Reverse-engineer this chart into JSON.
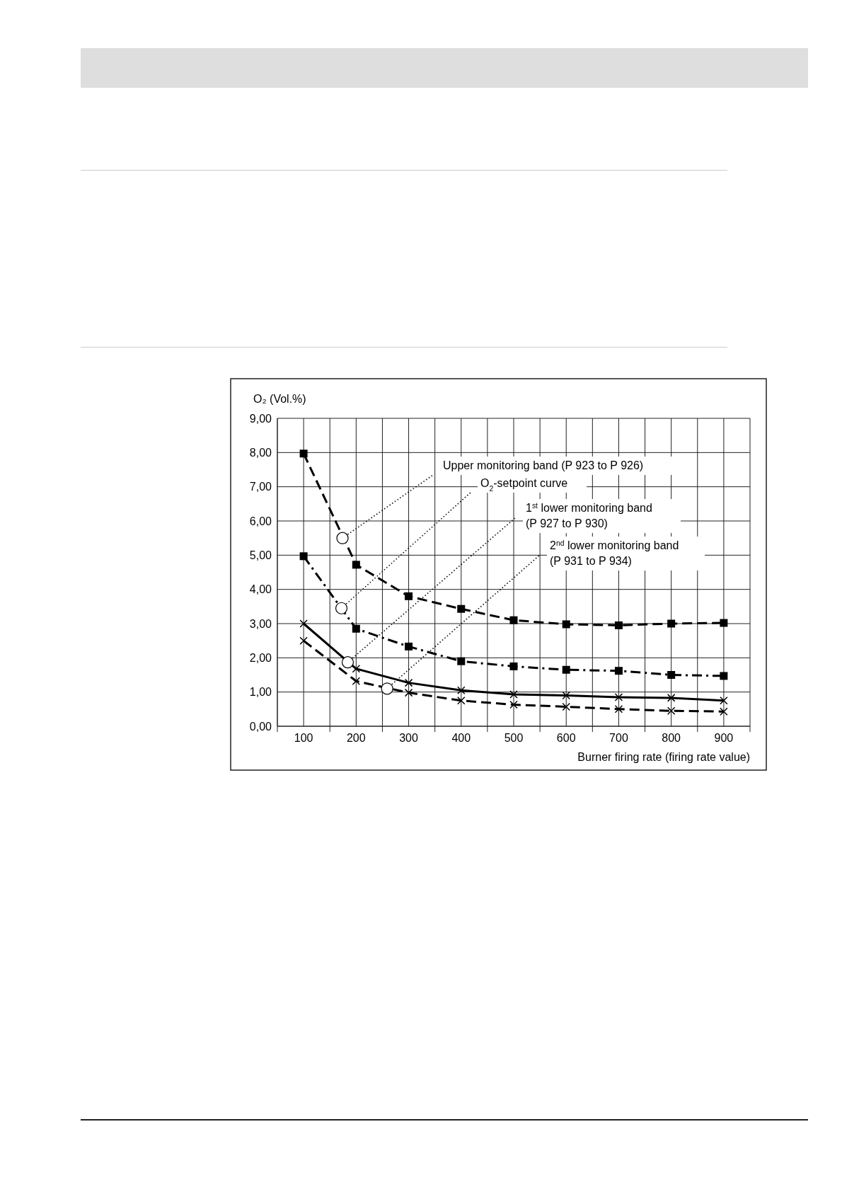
{
  "chart_data": {
    "type": "line",
    "ylabel": "O₂ (Vol.%)",
    "xlabel": "Burner firing rate (firing rate value)",
    "x": [
      100,
      200,
      300,
      400,
      500,
      600,
      700,
      800,
      900
    ],
    "xlim": [
      50,
      950
    ],
    "xticks": [
      {
        "value": 50,
        "label": null
      },
      100,
      {
        "value": 150,
        "label": null
      },
      200,
      {
        "value": 250,
        "label": null
      },
      300,
      {
        "value": 350,
        "label": null
      },
      400,
      {
        "value": 450,
        "label": null
      },
      500,
      {
        "value": 550,
        "label": null
      },
      600,
      {
        "value": 650,
        "label": null
      },
      700,
      {
        "value": 750,
        "label": null
      },
      800,
      {
        "value": 850,
        "label": null
      },
      900,
      {
        "value": 950,
        "label": null
      }
    ],
    "ylim": [
      0,
      9
    ],
    "yticks": [
      {
        "value": 0,
        "label": "0,00"
      },
      {
        "value": 1,
        "label": "1,00"
      },
      {
        "value": 2,
        "label": "2,00"
      },
      {
        "value": 3,
        "label": "3,00"
      },
      {
        "value": 4,
        "label": "4,00"
      },
      {
        "value": 5,
        "label": "5,00"
      },
      {
        "value": 6,
        "label": "6,00"
      },
      {
        "value": 7,
        "label": "7,00"
      },
      {
        "value": 8,
        "label": "8,00"
      },
      {
        "value": 9,
        "label": "9,00"
      }
    ],
    "grid": true,
    "series": [
      {
        "color": "#000000",
        "marker": "square",
        "line_style": "dashed",
        "values": [
          7.97,
          4.72,
          3.8,
          3.43,
          3.1,
          2.98,
          2.95,
          3.0,
          3.02
        ]
      },
      {
        "color": "#000000",
        "marker": "square",
        "line_style": "dashdot",
        "values": [
          4.97,
          2.85,
          2.33,
          1.9,
          1.75,
          1.65,
          1.62,
          1.5,
          1.47
        ]
      },
      {
        "color": "#000000",
        "marker": "cross",
        "line_style": "solid",
        "values": [
          3.0,
          1.68,
          1.27,
          1.05,
          0.93,
          0.9,
          0.85,
          0.83,
          0.75
        ]
      },
      {
        "color": "#000000",
        "marker": "cross",
        "line_style": "dashed",
        "values": [
          2.5,
          1.32,
          0.98,
          0.75,
          0.63,
          0.57,
          0.5,
          0.45,
          0.43
        ]
      }
    ],
    "annotations": [
      {
        "text": "Upper monitoring band (P 923 to P 926)",
        "x": 174,
        "y": 5.5
      },
      {
        "text": "O$_{2}$-setpoint curve",
        "x": 172,
        "y": 3.45
      },
      {
        "text": "1$^{st}$ lower monitoring band\n(P 927 to P 930)",
        "x": 184,
        "y": 1.87
      },
      {
        "text": "2$^{nd}$ lower monitoring band\n(P 931 to P 934)",
        "x": 259,
        "y": 1.1
      }
    ]
  }
}
